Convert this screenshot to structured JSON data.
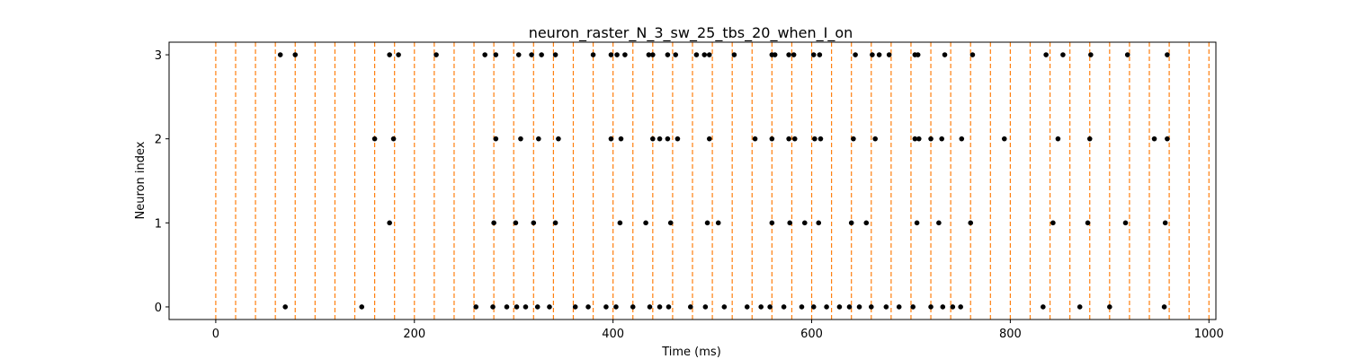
{
  "chart_data": {
    "type": "scatter",
    "title": "neuron_raster_N_3_sw_25_tbs_20_when_I_on",
    "xlabel": "Time (ms)",
    "ylabel": "Neuron index",
    "xlim": [
      -47,
      1007
    ],
    "ylim": [
      -0.15,
      3.15
    ],
    "xticks": [
      0,
      200,
      400,
      600,
      800,
      1000
    ],
    "yticks": [
      0,
      1,
      2,
      3
    ],
    "marker_color": "#000000",
    "guide_color": "#ff7f0e",
    "time_bins": [
      0,
      20,
      40,
      60,
      80,
      100,
      120,
      140,
      160,
      180,
      200,
      220,
      240,
      260,
      280,
      300,
      320,
      340,
      360,
      380,
      400,
      420,
      440,
      460,
      480,
      500,
      520,
      540,
      560,
      580,
      600,
      620,
      640,
      660,
      680,
      700,
      720,
      740,
      760,
      780,
      800,
      820,
      840,
      860,
      880,
      900,
      920,
      940,
      960,
      980,
      1000
    ],
    "series": [
      {
        "neuron": 0,
        "spikes": [
          70,
          147,
          262,
          279,
          293,
          303,
          312,
          324,
          336,
          362,
          375,
          393,
          403,
          420,
          437,
          447,
          456,
          478,
          493,
          512,
          535,
          549,
          558,
          572,
          590,
          602,
          615,
          628,
          638,
          648,
          660,
          675,
          688,
          702,
          720,
          732,
          742,
          750,
          833,
          870,
          900,
          955
        ]
      },
      {
        "neuron": 1,
        "spikes": [
          175,
          280,
          302,
          320,
          342,
          407,
          433,
          458,
          495,
          506,
          560,
          578,
          593,
          607,
          640,
          655,
          706,
          728,
          760,
          843,
          878,
          916,
          956
        ]
      },
      {
        "neuron": 2,
        "spikes": [
          160,
          179,
          282,
          307,
          325,
          345,
          398,
          408,
          440,
          447,
          455,
          465,
          497,
          543,
          560,
          577,
          583,
          603,
          609,
          642,
          664,
          704,
          708,
          720,
          731,
          751,
          794,
          848,
          880,
          945,
          958
        ]
      },
      {
        "neuron": 3,
        "spikes": [
          65,
          80,
          175,
          184,
          222,
          271,
          282,
          305,
          318,
          328,
          342,
          380,
          398,
          404,
          412,
          436,
          440,
          455,
          463,
          484,
          492,
          497,
          522,
          560,
          563,
          577,
          582,
          602,
          608,
          644,
          661,
          668,
          678,
          704,
          707,
          734,
          762,
          836,
          853,
          881,
          918,
          958
        ]
      }
    ]
  }
}
